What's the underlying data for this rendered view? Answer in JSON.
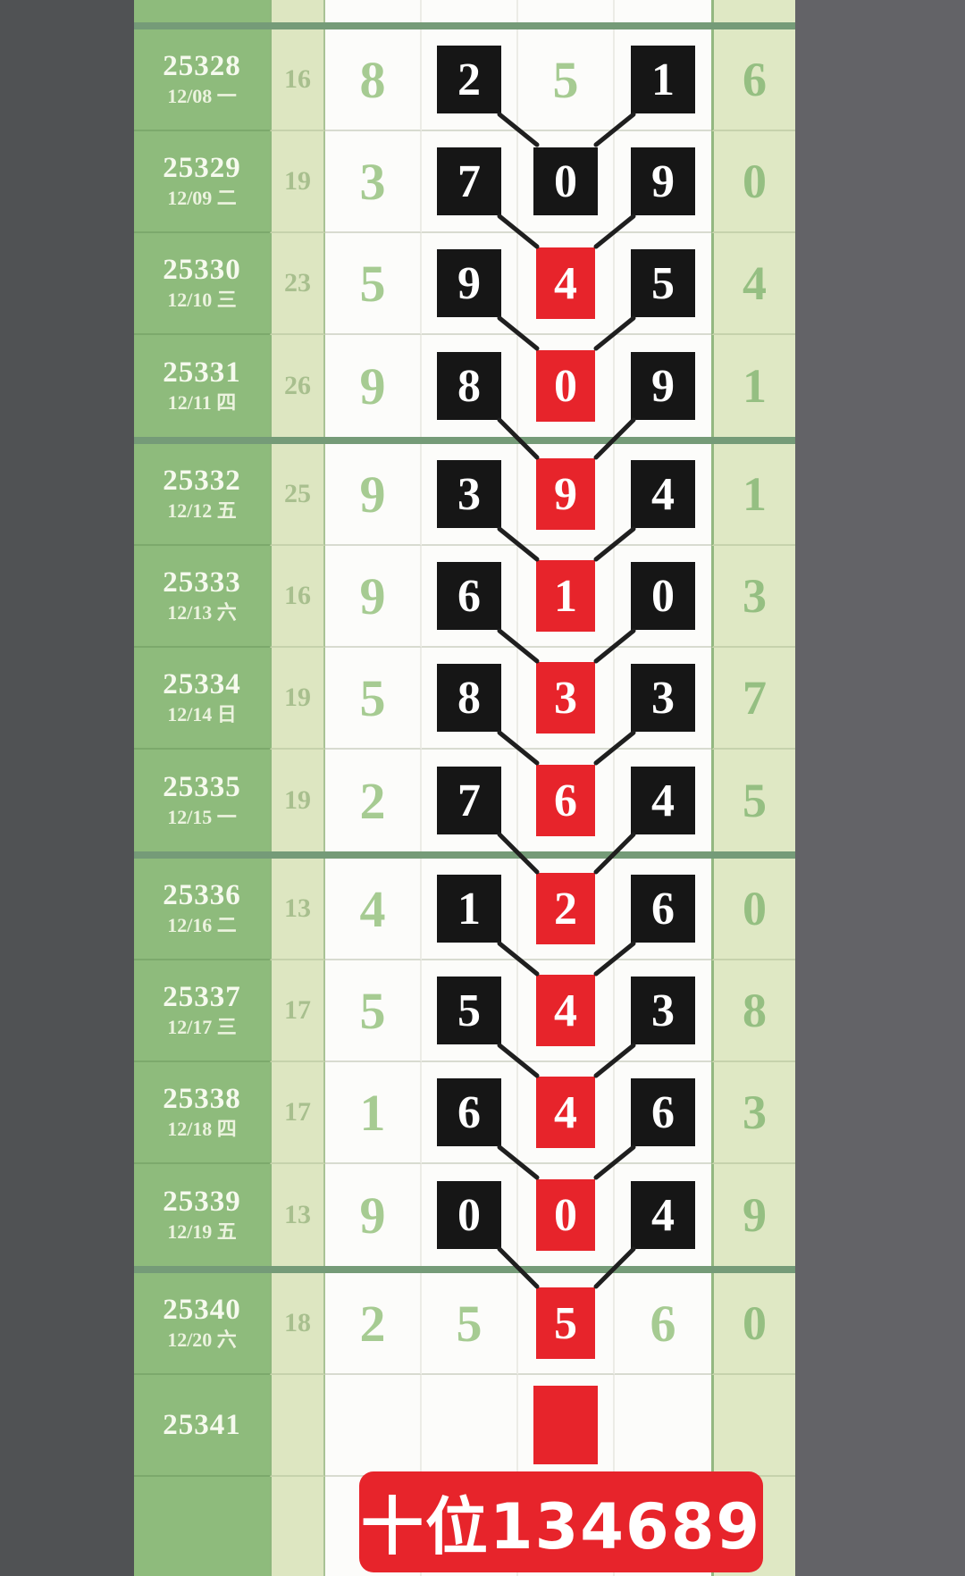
{
  "banner": {
    "text": "十位134689"
  },
  "colors": {
    "accent_red": "#e7242b",
    "box_black": "#161616",
    "issue_green": "#8ebb7c",
    "count_pale_green": "#dde6c1",
    "right_pale_green": "#dfe8c4",
    "digit_green": "#a6cb92",
    "separator_green": "#759b78",
    "gutter_left_gray": "#505254",
    "gutter_right_gray": "#636367",
    "trend_line_black": "#1f1f1f"
  },
  "chart_data": {
    "type": "table",
    "title": "十位134689",
    "legend": "black box = drawn digit, red box = marked tens-digit path, V lines link each draw to the next marked digit",
    "columns": [
      "issue",
      "date",
      "count",
      "digit1",
      "digit2",
      "digit3",
      "digit4",
      "right_digit"
    ],
    "rows": [
      {
        "issue": "25328",
        "date": "12/08 一",
        "count": "16",
        "cells": [
          {
            "v": "8",
            "s": "plain"
          },
          {
            "v": "2",
            "s": "black"
          },
          {
            "v": "5",
            "s": "plain"
          },
          {
            "v": "1",
            "s": "black"
          }
        ],
        "right": "6"
      },
      {
        "issue": "25329",
        "date": "12/09 二",
        "count": "19",
        "cells": [
          {
            "v": "3",
            "s": "plain"
          },
          {
            "v": "7",
            "s": "black"
          },
          {
            "v": "0",
            "s": "black"
          },
          {
            "v": "9",
            "s": "black"
          }
        ],
        "right": "0"
      },
      {
        "issue": "25330",
        "date": "12/10 三",
        "count": "23",
        "cells": [
          {
            "v": "5",
            "s": "plain"
          },
          {
            "v": "9",
            "s": "black"
          },
          {
            "v": "4",
            "s": "red"
          },
          {
            "v": "5",
            "s": "black"
          }
        ],
        "right": "4"
      },
      {
        "issue": "25331",
        "date": "12/11 四",
        "count": "26",
        "cells": [
          {
            "v": "9",
            "s": "plain"
          },
          {
            "v": "8",
            "s": "black"
          },
          {
            "v": "0",
            "s": "red"
          },
          {
            "v": "9",
            "s": "black"
          }
        ],
        "right": "1"
      },
      {
        "issue": "25332",
        "date": "12/12 五",
        "count": "25",
        "cells": [
          {
            "v": "9",
            "s": "plain"
          },
          {
            "v": "3",
            "s": "black"
          },
          {
            "v": "9",
            "s": "red"
          },
          {
            "v": "4",
            "s": "black"
          }
        ],
        "right": "1"
      },
      {
        "issue": "25333",
        "date": "12/13 六",
        "count": "16",
        "cells": [
          {
            "v": "9",
            "s": "plain"
          },
          {
            "v": "6",
            "s": "black"
          },
          {
            "v": "1",
            "s": "red"
          },
          {
            "v": "0",
            "s": "black"
          }
        ],
        "right": "3"
      },
      {
        "issue": "25334",
        "date": "12/14 日",
        "count": "19",
        "cells": [
          {
            "v": "5",
            "s": "plain"
          },
          {
            "v": "8",
            "s": "black"
          },
          {
            "v": "3",
            "s": "red"
          },
          {
            "v": "3",
            "s": "black"
          }
        ],
        "right": "7"
      },
      {
        "issue": "25335",
        "date": "12/15 一",
        "count": "19",
        "cells": [
          {
            "v": "2",
            "s": "plain"
          },
          {
            "v": "7",
            "s": "black"
          },
          {
            "v": "6",
            "s": "red"
          },
          {
            "v": "4",
            "s": "black"
          }
        ],
        "right": "5"
      },
      {
        "issue": "25336",
        "date": "12/16 二",
        "count": "13",
        "cells": [
          {
            "v": "4",
            "s": "plain"
          },
          {
            "v": "1",
            "s": "black"
          },
          {
            "v": "2",
            "s": "red"
          },
          {
            "v": "6",
            "s": "black"
          }
        ],
        "right": "0"
      },
      {
        "issue": "25337",
        "date": "12/17 三",
        "count": "17",
        "cells": [
          {
            "v": "5",
            "s": "plain"
          },
          {
            "v": "5",
            "s": "black"
          },
          {
            "v": "4",
            "s": "red"
          },
          {
            "v": "3",
            "s": "black"
          }
        ],
        "right": "8"
      },
      {
        "issue": "25338",
        "date": "12/18 四",
        "count": "17",
        "cells": [
          {
            "v": "1",
            "s": "plain"
          },
          {
            "v": "6",
            "s": "black"
          },
          {
            "v": "4",
            "s": "red"
          },
          {
            "v": "6",
            "s": "black"
          }
        ],
        "right": "3"
      },
      {
        "issue": "25339",
        "date": "12/19 五",
        "count": "13",
        "cells": [
          {
            "v": "9",
            "s": "plain"
          },
          {
            "v": "0",
            "s": "black"
          },
          {
            "v": "0",
            "s": "red"
          },
          {
            "v": "4",
            "s": "black"
          }
        ],
        "right": "9"
      },
      {
        "issue": "25340",
        "date": "12/20 六",
        "count": "18",
        "cells": [
          {
            "v": "2",
            "s": "plain"
          },
          {
            "v": "5",
            "s": "plain"
          },
          {
            "v": "5",
            "s": "red"
          },
          {
            "v": "6",
            "s": "plain"
          }
        ],
        "right": "0"
      },
      {
        "issue": "25341",
        "date": "",
        "count": "",
        "cells": [
          {
            "v": "",
            "s": "empty"
          },
          {
            "v": "",
            "s": "empty"
          },
          {
            "v": "",
            "s": "red"
          },
          {
            "v": "",
            "s": "empty"
          }
        ],
        "right": ""
      }
    ]
  }
}
